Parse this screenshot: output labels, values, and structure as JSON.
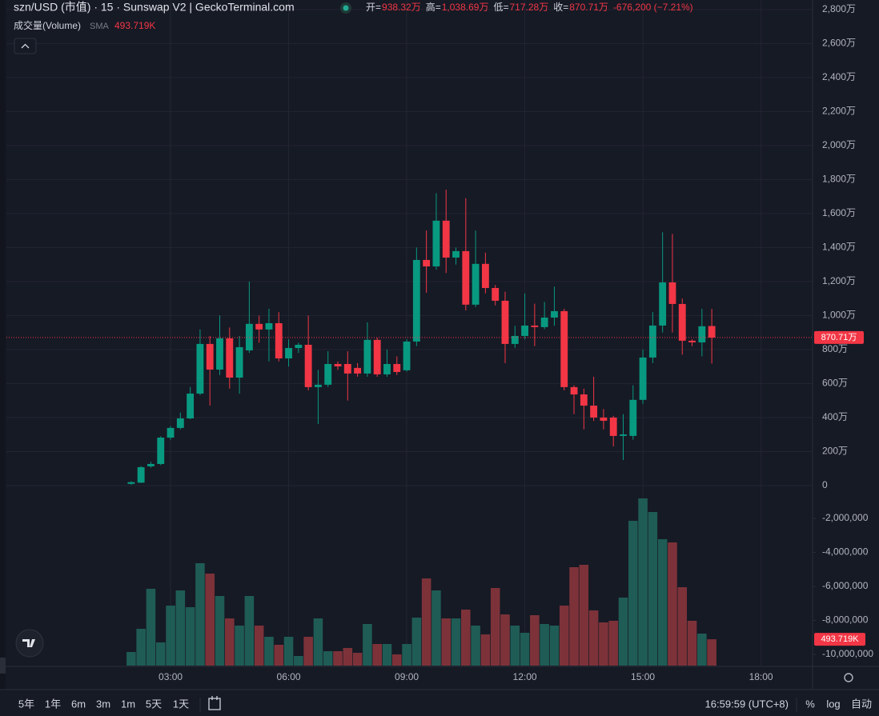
{
  "header": {
    "title": "szn/USD (市值) · 15 · Sunswap V2 | GeckoTerminal.com",
    "ohlc": [
      {
        "label": "开=",
        "value": "938.32万"
      },
      {
        "label": "高=",
        "value": "1,038.69万"
      },
      {
        "label": "低=",
        "value": "717.28万"
      },
      {
        "label": "收=",
        "value": "870.71万"
      }
    ],
    "change": "-676,200 (−7.21%)",
    "volume_legend": "成交量(Volume)",
    "sma": "SMA",
    "sma_value": "493.719K"
  },
  "toolbar": {
    "ranges": [
      "5年",
      "1年",
      "6m",
      "3m",
      "1m",
      "5天",
      "1天"
    ],
    "clock": "16:59:59 (UTC+8)",
    "percent": "%",
    "log": "log",
    "auto": "自动"
  },
  "chart_data": {
    "type": "candlestick",
    "x": [
      2,
      2.25,
      2.5,
      2.75,
      3,
      3.25,
      3.5,
      3.75,
      4,
      4.25,
      4.5,
      4.75,
      5,
      5.25,
      5.5,
      5.75,
      6,
      6.25,
      6.5,
      6.75,
      7,
      7.25,
      7.5,
      7.75,
      8,
      8.25,
      8.5,
      8.75,
      9,
      9.25,
      9.5,
      9.75,
      10,
      10.25,
      10.5,
      10.75,
      11,
      11.25,
      11.5,
      11.75,
      12,
      12.25,
      12.5,
      12.75,
      13,
      13.25,
      13.5,
      13.75,
      14,
      14.25,
      14.5,
      14.75,
      15,
      15.25,
      15.5,
      15.75,
      16,
      16.25,
      16.5,
      16.75
    ],
    "open": [
      10,
      17,
      113,
      127,
      282,
      339,
      395,
      541,
      833,
      682,
      866,
      635,
      795,
      951,
      918,
      955,
      748,
      809,
      828,
      579,
      593,
      715,
      715,
      692,
      659,
      857,
      654,
      715,
      678,
      847,
      1327,
      1289,
      1558,
      1341,
      1379,
      1064,
      1304,
      1162,
      1087,
      833,
      880,
      941,
      932,
      988,
      1026,
      579,
      536,
      470,
      400,
      400,
      292,
      292,
      504,
      753,
      941,
      1195,
      1068,
      852,
      842,
      938.32
    ],
    "high": [
      25,
      115,
      140,
      290,
      350,
      430,
      580,
      918,
      880,
      1000,
      930,
      880,
      1200,
      1000,
      1040,
      1020,
      860,
      840,
      1000,
      680,
      790,
      730,
      790,
      720,
      960,
      870,
      800,
      760,
      860,
      1400,
      1500,
      1720,
      1740,
      1400,
      1690,
      1500,
      1370,
      1180,
      1140,
      940,
      1130,
      1070,
      1080,
      1170,
      1040,
      590,
      570,
      640,
      450,
      410,
      420,
      590,
      800,
      1020,
      1490,
      1480,
      1100,
      860,
      1040,
      1038.69
    ],
    "low": [
      5,
      15,
      105,
      120,
      270,
      330,
      390,
      532,
      470,
      650,
      570,
      540,
      780,
      840,
      730,
      730,
      700,
      780,
      560,
      362,
      580,
      680,
      500,
      640,
      640,
      640,
      640,
      650,
      670,
      820,
      1134,
      1270,
      1250,
      1300,
      1030,
      1050,
      1130,
      1060,
      720,
      810,
      860,
      820,
      920,
      940,
      560,
      420,
      330,
      380,
      330,
      230,
      150,
      270,
      480,
      720,
      900,
      900,
      770,
      820,
      760,
      717.28
    ],
    "close": [
      20,
      108,
      127,
      282,
      339,
      395,
      541,
      833,
      682,
      866,
      635,
      814,
      951,
      918,
      955,
      748,
      809,
      828,
      579,
      593,
      715,
      701,
      659,
      659,
      857,
      654,
      715,
      668,
      847,
      1327,
      1289,
      1558,
      1341,
      1379,
      1064,
      1304,
      1162,
      1087,
      833,
      880,
      941,
      932,
      988,
      1026,
      579,
      536,
      470,
      400,
      381,
      292,
      301,
      504,
      753,
      941,
      1195,
      1068,
      852,
      842,
      937,
      870.71
    ],
    "volume": [
      255,
      690,
      1440,
      435,
      1125,
      1410,
      1095,
      1920,
      1725,
      1305,
      885,
      750,
      1305,
      750,
      540,
      390,
      540,
      180,
      540,
      885,
      270,
      270,
      330,
      240,
      780,
      405,
      405,
      210,
      405,
      900,
      1635,
      1410,
      885,
      885,
      1050,
      750,
      585,
      1455,
      960,
      750,
      615,
      945,
      780,
      750,
      1125,
      1845,
      1890,
      1035,
      810,
      840,
      1275,
      2715,
      3135,
      2880,
      2370,
      2310,
      1470,
      840,
      600,
      493.719
    ],
    "volume_labels": [
      null,
      null,
      null,
      null,
      null,
      null,
      null,
      null,
      null,
      null,
      null,
      null,
      null,
      null,
      null,
      null,
      null,
      null,
      null,
      null,
      null,
      null,
      null,
      null,
      null,
      null,
      null,
      null,
      null,
      null,
      null,
      null,
      null,
      null,
      null,
      null,
      null,
      null,
      null,
      null,
      null,
      null,
      null,
      null,
      null,
      null,
      null,
      null,
      null,
      null,
      null,
      null,
      null,
      null,
      null,
      null,
      null,
      null,
      null,
      "493.719K"
    ],
    "volume_lim": [
      0,
      12480
    ],
    "xlim": [
      -1.17,
      19.31
    ],
    "xticks": [
      {
        "value": 3,
        "label": "03:00"
      },
      {
        "value": 6,
        "label": "06:00"
      },
      {
        "value": 9,
        "label": "09:00"
      },
      {
        "value": 12,
        "label": "12:00"
      },
      {
        "value": 15,
        "label": "15:00"
      },
      {
        "value": 18,
        "label": "18:00"
      }
    ],
    "ylim": [
      -1059,
      2856
    ],
    "yticks": [
      0,
      {
        "value": 200,
        "label": "200万"
      },
      {
        "value": 400,
        "label": "400万"
      },
      {
        "value": 600,
        "label": "600万"
      },
      {
        "value": 800,
        "label": "800万"
      },
      {
        "value": 1000,
        "label": "1,000万"
      },
      {
        "value": 1200,
        "label": "1,200万"
      },
      {
        "value": 1400,
        "label": "1,400万"
      },
      {
        "value": 1600,
        "label": "1,600万"
      },
      {
        "value": 1800,
        "label": "1,800万"
      },
      {
        "value": 2000,
        "label": "2,000万"
      },
      {
        "value": 2200,
        "label": "2,200万"
      },
      {
        "value": 2400,
        "label": "2,400万"
      },
      {
        "value": 2600,
        "label": "2,600万"
      },
      {
        "value": 2800,
        "label": "2,800万"
      }
    ],
    "y2lim": [
      -10660000,
      28490000
    ],
    "y2ticks": [
      {
        "value": -2000000,
        "label": "-2,000,000"
      },
      {
        "value": -4000000,
        "label": "-4,000,000"
      },
      {
        "value": -6000000,
        "label": "-6,000,000"
      },
      {
        "value": -8000000,
        "label": "-8,000,000"
      },
      {
        "value": -10000000,
        "label": "-10,000,000"
      }
    ],
    "last_price": {
      "value": 870.71,
      "label": "870.71万"
    },
    "grid": true,
    "up_color": "#089981",
    "down_color": "#f23645",
    "volume_up_color": "#1f5c55",
    "volume_down_color": "#7d3239"
  }
}
